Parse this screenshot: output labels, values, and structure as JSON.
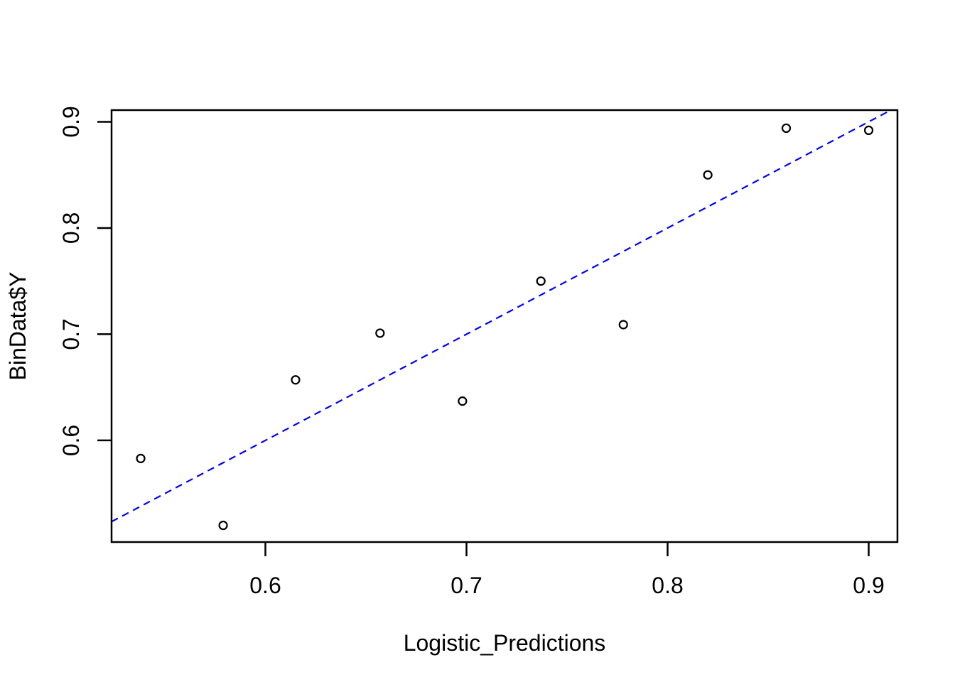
{
  "chart_data": {
    "type": "scatter",
    "title": "",
    "xlabel": "Logistic_Predictions",
    "ylabel": "BinData$Y",
    "x_ticks": [
      0.6,
      0.7,
      0.8,
      0.9
    ],
    "y_ticks": [
      0.6,
      0.7,
      0.8,
      0.9
    ],
    "x_tick_labels": [
      "0.6",
      "0.7",
      "0.8",
      "0.9"
    ],
    "y_tick_labels": [
      "0.6",
      "0.7",
      "0.8",
      "0.9"
    ],
    "xlim": [
      0.5235,
      0.9143
    ],
    "ylim": [
      0.5043,
      0.911
    ],
    "grid": false,
    "legend": null,
    "points": [
      {
        "x": 0.538,
        "y": 0.583
      },
      {
        "x": 0.579,
        "y": 0.52
      },
      {
        "x": 0.615,
        "y": 0.657
      },
      {
        "x": 0.657,
        "y": 0.701
      },
      {
        "x": 0.698,
        "y": 0.637
      },
      {
        "x": 0.737,
        "y": 0.75
      },
      {
        "x": 0.778,
        "y": 0.709
      },
      {
        "x": 0.82,
        "y": 0.85
      },
      {
        "x": 0.859,
        "y": 0.894
      },
      {
        "x": 0.9,
        "y": 0.892
      }
    ],
    "point_style": {
      "shape": "open-circle",
      "color": "#000000"
    },
    "reference_line": {
      "kind": "identity",
      "intercept": 0,
      "slope": 1,
      "style": "dashed",
      "color": "#0000ff"
    },
    "colors": {
      "axis": "#000000",
      "points": "#000000",
      "reference_line": "#0000ff",
      "background": "#ffffff"
    }
  }
}
